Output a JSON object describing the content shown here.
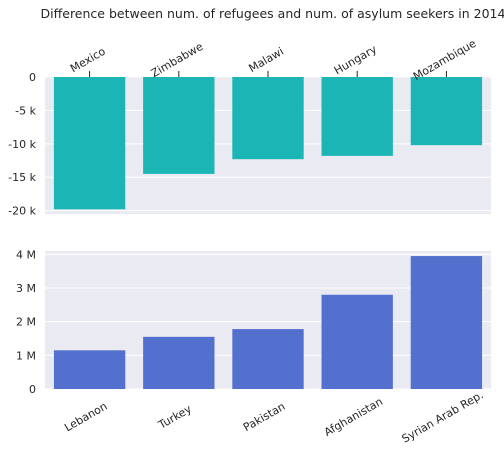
{
  "chart_data": [
    {
      "type": "bar",
      "title": "Difference between num. of refugees and num. of asylum seekers in 2014",
      "categories": [
        "Mexico",
        "Zimbabwe",
        "Malawi",
        "Hungary",
        "Mozambique"
      ],
      "values": [
        -19800,
        -14500,
        -12300,
        -11800,
        -10200
      ],
      "ylim": [
        -20500,
        0
      ],
      "yticks": [
        0,
        -5000,
        -10000,
        -15000,
        -20000
      ],
      "ytick_labels": [
        "0",
        "-5 k",
        "-10 k",
        "-15 k",
        "-20 k"
      ],
      "xaxis_position": "top",
      "color": "#1bb5b5",
      "grid": true
    },
    {
      "type": "bar",
      "categories": [
        "Lebanon",
        "Turkey",
        "Pakistan",
        "Afghanistan",
        "Syrian Arab Rep."
      ],
      "values": [
        1150000,
        1550000,
        1780000,
        2800000,
        3950000
      ],
      "ylim": [
        0,
        4100000
      ],
      "yticks": [
        0,
        1000000,
        2000000,
        3000000,
        4000000
      ],
      "ytick_labels": [
        "0",
        "1 M",
        "2 M",
        "3 M",
        "4 M"
      ],
      "xaxis_position": "bottom",
      "color": "#5470cf",
      "grid": true
    }
  ]
}
